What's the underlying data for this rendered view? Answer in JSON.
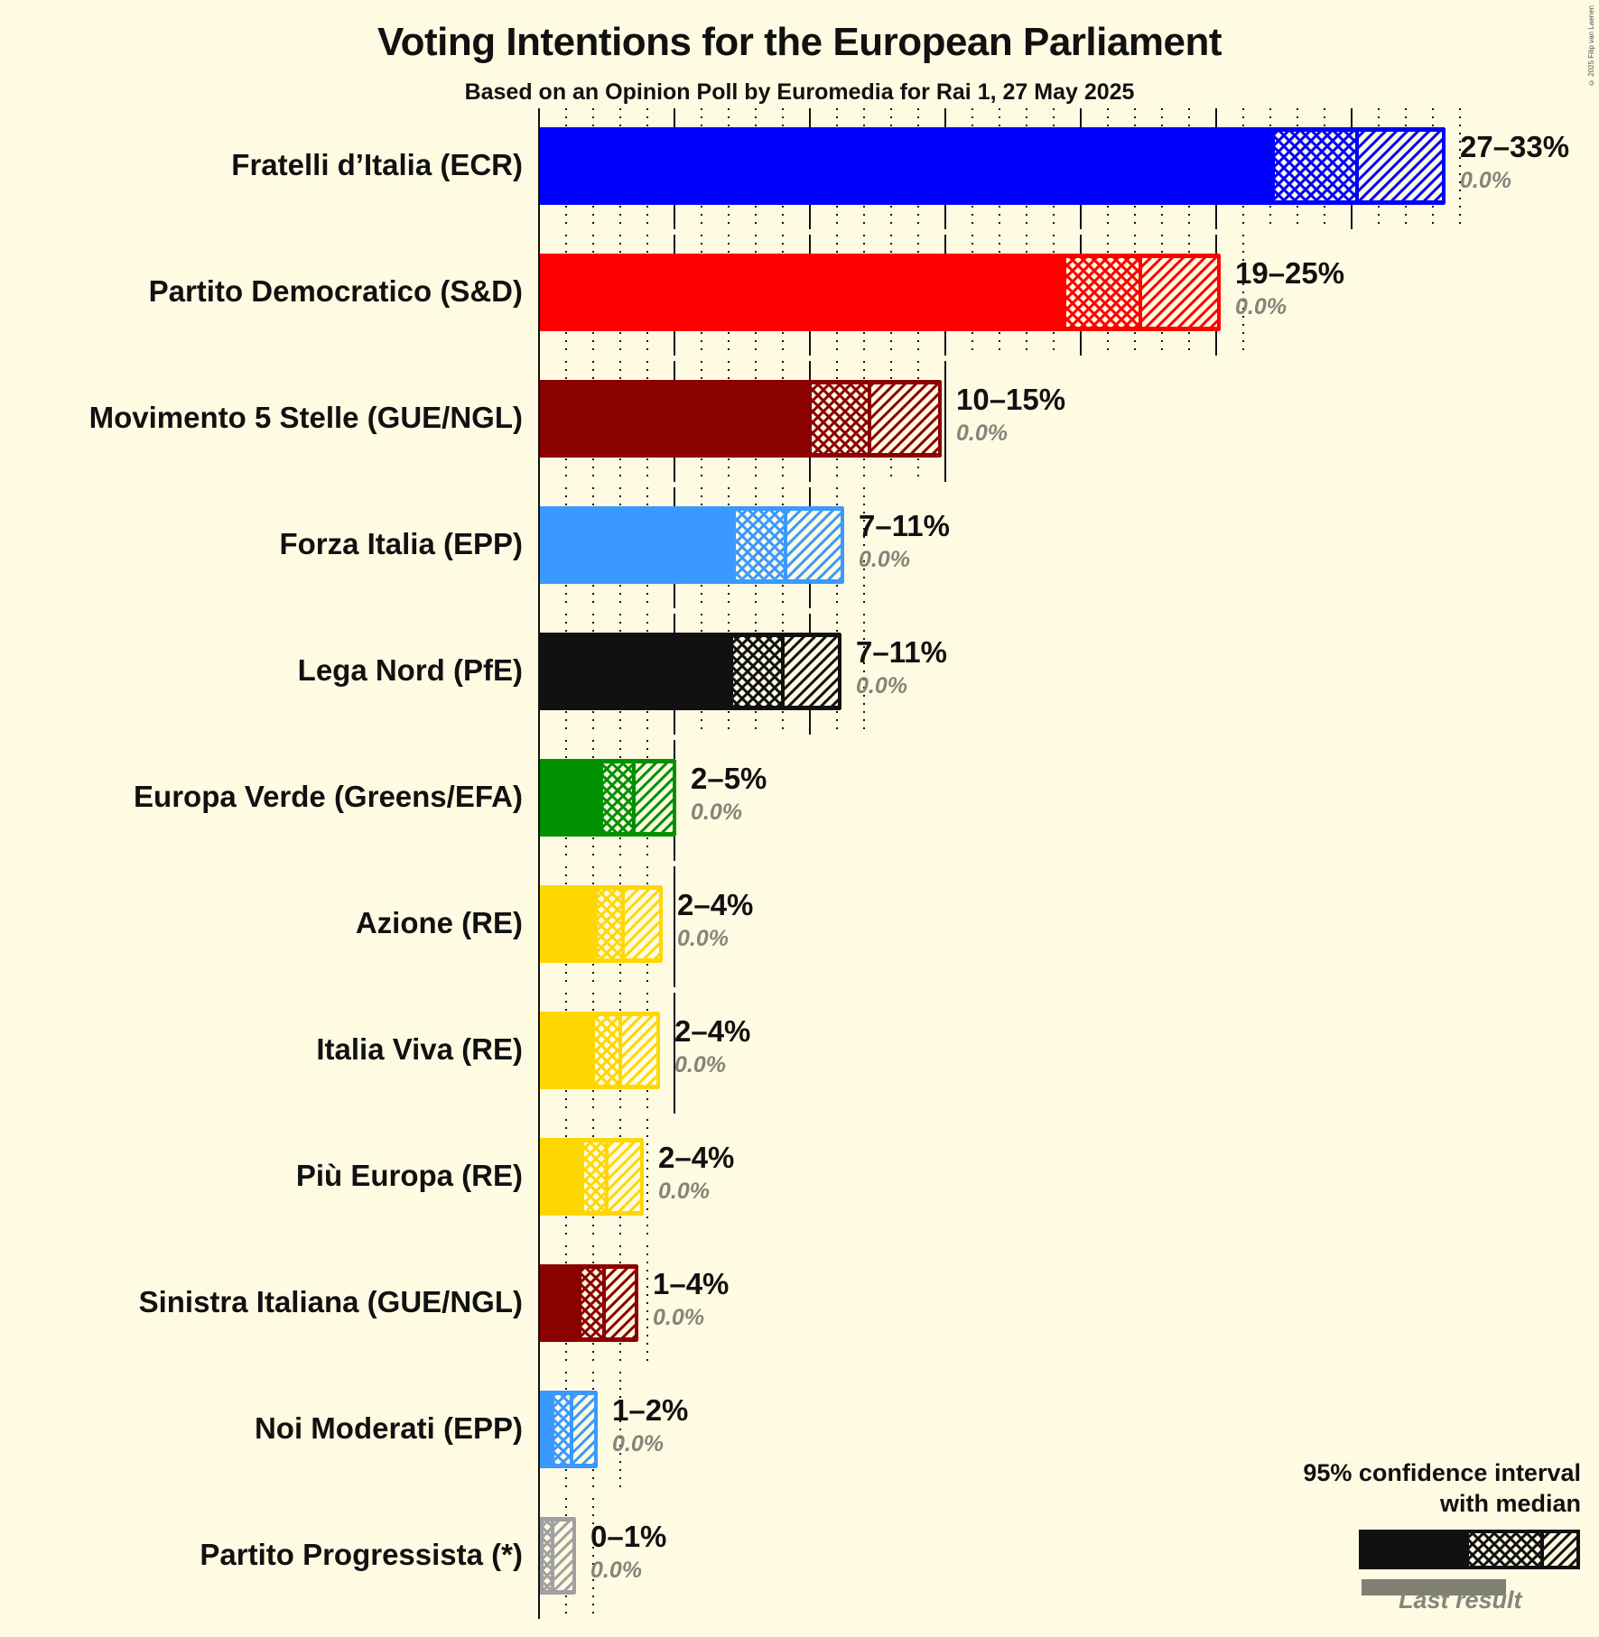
{
  "header": {
    "title": "Voting Intentions for the European Parliament",
    "subtitle": "Based on an Opinion Poll by Euromedia for Rai 1, 27 May 2025",
    "copyright": "© 2025 Filip van Laenen"
  },
  "legend": {
    "title_line1": "95% confidence interval",
    "title_line2": "with median",
    "last_result": "Last result"
  },
  "chart_data": {
    "type": "bar",
    "orientation": "horizontal",
    "title": "Voting Intentions for the European Parliament",
    "subtitle": "Based on an Opinion Poll by Euromedia for Rai 1, 27 May 2025",
    "xlabel": "",
    "ylabel": "",
    "xlim": [
      0,
      34
    ],
    "grid": "major every 5%, minor dotted every 1%",
    "legend": [
      "95% confidence interval with median",
      "Last result"
    ],
    "categories": [
      "Fratelli d’Italia (ECR)",
      "Partito Democratico (S&D)",
      "Movimento 5 Stelle (GUE/NGL)",
      "Forza Italia (EPP)",
      "Lega Nord (PfE)",
      "Europa Verde (Greens/EFA)",
      "Azione (RE)",
      "Italia Viva (RE)",
      "Più Europa (RE)",
      "Sinistra Italiana (GUE/NGL)",
      "Noi Moderati (EPP)",
      "Partito Progressista (*)"
    ],
    "series": [
      {
        "name": "CI low",
        "values": [
          27.1,
          19.4,
          10.0,
          7.2,
          7.1,
          2.3,
          2.1,
          2.0,
          1.6,
          1.5,
          0.5,
          0.1
        ]
      },
      {
        "name": "Median",
        "values": [
          30.2,
          22.2,
          12.2,
          9.1,
          9.0,
          3.5,
          3.1,
          3.0,
          2.5,
          2.4,
          1.2,
          0.5
        ]
      },
      {
        "name": "CI high",
        "values": [
          33.4,
          25.1,
          14.8,
          11.2,
          11.1,
          5.0,
          4.5,
          4.4,
          3.8,
          3.6,
          2.1,
          1.3
        ]
      },
      {
        "name": "Last result",
        "values": [
          0.0,
          0.0,
          0.0,
          0.0,
          0.0,
          0.0,
          0.0,
          0.0,
          0.0,
          0.0,
          0.0,
          0.0
        ]
      }
    ],
    "range_labels": [
      "27–33%",
      "19–25%",
      "10–15%",
      "7–11%",
      "7–11%",
      "2–5%",
      "2–4%",
      "2–4%",
      "2–4%",
      "1–4%",
      "1–2%",
      "0–1%"
    ],
    "last_labels": [
      "0.0%",
      "0.0%",
      "0.0%",
      "0.0%",
      "0.0%",
      "0.0%",
      "0.0%",
      "0.0%",
      "0.0%",
      "0.0%",
      "0.0%",
      "0.0%"
    ],
    "colors": [
      "#0000ff",
      "#ff0000",
      "#8b0000",
      "#3a99ff",
      "#111111",
      "#009000",
      "#ffd700",
      "#ffd700",
      "#ffd700",
      "#8b0000",
      "#3a99ff",
      "#a0a0a0"
    ]
  }
}
